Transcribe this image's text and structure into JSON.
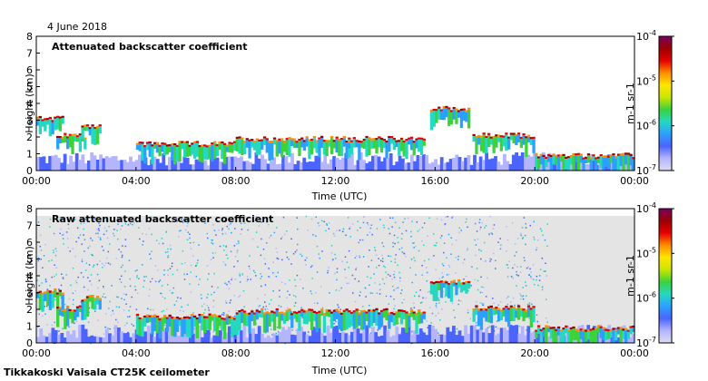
{
  "date_label": "4 June 2018",
  "footer": "Tikkakoski Vaisala CT25K ceilometer",
  "colors": {
    "background_fill": "#e4e4e4",
    "colormap": [
      "#dcdcf0",
      "#b4b4ff",
      "#4b64ff",
      "#2ca0ff",
      "#25d8c0",
      "#3cd23c",
      "#c8e600",
      "#ffe600",
      "#ff8c00",
      "#e60000",
      "#9c0000",
      "#7a0060"
    ]
  },
  "chart_data": [
    {
      "type": "heatmap",
      "title": "Attenuated backscatter coefficient",
      "xlabel": "Time (UTC)",
      "ylabel": "Height (km)",
      "xticks": [
        "00:00",
        "04:00",
        "08:00",
        "12:00",
        "16:00",
        "20:00",
        "00:00"
      ],
      "yticks": [
        "0",
        "1",
        "2",
        "3",
        "4",
        "5",
        "6",
        "7",
        "8"
      ],
      "xlim_hours": [
        0,
        24
      ],
      "ylim_km": [
        0,
        8
      ],
      "colorbar": {
        "scale": "log",
        "range": [
          1e-07,
          0.0001
        ],
        "tick_labels": [
          "10-7",
          "10-6",
          "10-5",
          "10-4"
        ],
        "unit_label": "m-1 sr-1"
      },
      "cloud_layers": [
        {
          "start_h": 0.0,
          "end_h": 1.0,
          "height_km": 3.0
        },
        {
          "start_h": 0.8,
          "end_h": 2.0,
          "height_km": 2.0
        },
        {
          "start_h": 1.8,
          "end_h": 2.6,
          "height_km": 2.6
        },
        {
          "start_h": 4.0,
          "end_h": 8.0,
          "height_km": 1.5
        },
        {
          "start_h": 8.0,
          "end_h": 12.5,
          "height_km": 1.8
        },
        {
          "start_h": 12.5,
          "end_h": 15.5,
          "height_km": 1.8
        },
        {
          "start_h": 15.8,
          "end_h": 17.4,
          "height_km": 3.6
        },
        {
          "start_h": 17.5,
          "end_h": 20.0,
          "height_km": 2.0
        },
        {
          "start_h": 20.0,
          "end_h": 24.0,
          "height_km": 0.8
        }
      ],
      "show_clear_sky_noise": false
    },
    {
      "type": "heatmap",
      "title": "Raw attenuated backscatter coefficient",
      "xlabel": "Time (UTC)",
      "ylabel": "Height (km)",
      "xticks": [
        "00:00",
        "04:00",
        "08:00",
        "12:00",
        "16:00",
        "20:00",
        "00:00"
      ],
      "yticks": [
        "0",
        "1",
        "2",
        "3",
        "4",
        "5",
        "6",
        "7",
        "8"
      ],
      "xlim_hours": [
        0,
        24
      ],
      "ylim_km": [
        0,
        8
      ],
      "colorbar": {
        "scale": "log",
        "range": [
          1e-07,
          0.0001
        ],
        "tick_labels": [
          "10-7",
          "10-6",
          "10-5",
          "10-4"
        ],
        "unit_label": "m-1 sr-1"
      },
      "cloud_layers": [
        {
          "start_h": 0.0,
          "end_h": 1.0,
          "height_km": 3.0
        },
        {
          "start_h": 0.8,
          "end_h": 2.0,
          "height_km": 2.0
        },
        {
          "start_h": 1.8,
          "end_h": 2.6,
          "height_km": 2.6
        },
        {
          "start_h": 4.0,
          "end_h": 8.0,
          "height_km": 1.5
        },
        {
          "start_h": 8.0,
          "end_h": 12.5,
          "height_km": 1.8
        },
        {
          "start_h": 12.5,
          "end_h": 15.5,
          "height_km": 1.8
        },
        {
          "start_h": 15.8,
          "end_h": 17.4,
          "height_km": 3.6
        },
        {
          "start_h": 17.5,
          "end_h": 20.0,
          "height_km": 2.0
        },
        {
          "start_h": 20.0,
          "end_h": 24.0,
          "height_km": 0.8
        }
      ],
      "show_clear_sky_noise": true
    }
  ]
}
